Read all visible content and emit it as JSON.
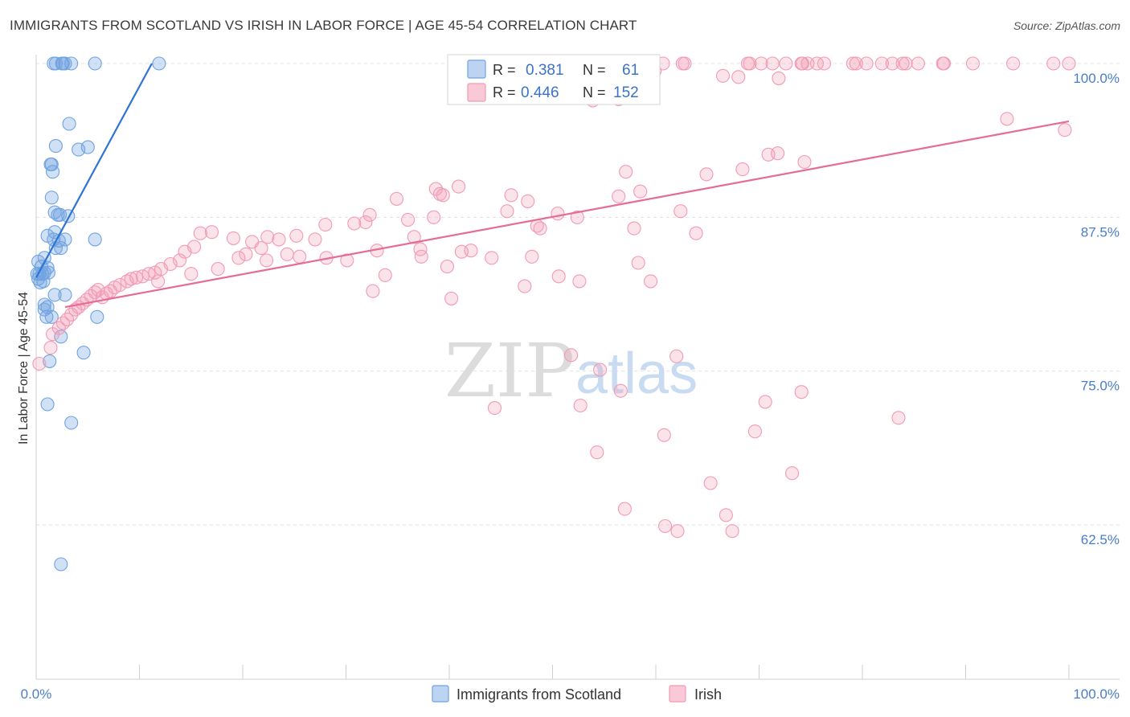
{
  "title": "IMMIGRANTS FROM SCOTLAND VS IRISH IN LABOR FORCE | AGE 45-54 CORRELATION CHART",
  "source": "Source: ZipAtlas.com",
  "watermark": {
    "zip": "ZIP",
    "atlas": "atlas"
  },
  "colors": {
    "blue": "#6fa3e0",
    "blue_line": "#2f74d4",
    "pink": "#f29ab5",
    "pink_line": "#e56c96"
  },
  "legend": {
    "r_label": "R =",
    "n_label": "N =",
    "rows": [
      {
        "r": "0.381",
        "n": "61"
      },
      {
        "r": "0.446",
        "n": "152"
      }
    ]
  },
  "chart_data": {
    "type": "scatter",
    "title": "IMMIGRANTS FROM SCOTLAND VS IRISH IN LABOR FORCE | AGE 45-54 CORRELATION CHART",
    "xlabel": "",
    "ylabel": "In Labor Force | Age 45-54",
    "xlim": [
      0,
      100
    ],
    "ylim": [
      50,
      101
    ],
    "x_ticks": [
      "0.0%",
      "100.0%"
    ],
    "y_ticks": [
      {
        "value": 100,
        "label": "100.0%"
      },
      {
        "value": 87.5,
        "label": "87.5%"
      },
      {
        "value": 75,
        "label": "75.0%"
      },
      {
        "value": 62.5,
        "label": "62.5%"
      }
    ],
    "series": [
      {
        "name": "Immigrants from Scotland",
        "r": 0.381,
        "n": 61,
        "trend": [
          [
            0.0,
            82.6
          ],
          [
            11.2,
            100.0
          ]
        ],
        "points": [
          [
            1.7,
            100
          ],
          [
            1.9,
            100
          ],
          [
            2.5,
            100
          ],
          [
            2.6,
            100
          ],
          [
            2.8,
            100
          ],
          [
            3.4,
            100
          ],
          [
            5.7,
            100
          ],
          [
            11.9,
            100
          ],
          [
            3.2,
            95.1
          ],
          [
            1.9,
            93.3
          ],
          [
            4.1,
            93.0
          ],
          [
            5.0,
            93.2
          ],
          [
            1.4,
            91.8
          ],
          [
            1.5,
            91.8
          ],
          [
            1.6,
            91.2
          ],
          [
            1.5,
            89.1
          ],
          [
            1.8,
            87.9
          ],
          [
            2.3,
            87.7
          ],
          [
            3.1,
            87.6
          ],
          [
            2.1,
            87.7
          ],
          [
            1.1,
            86.0
          ],
          [
            1.8,
            86.3
          ],
          [
            1.7,
            85.7
          ],
          [
            2.2,
            85.6
          ],
          [
            2.8,
            85.7
          ],
          [
            5.7,
            85.7
          ],
          [
            1.9,
            85.0
          ],
          [
            2.4,
            85.0
          ],
          [
            0.8,
            84.2
          ],
          [
            0.2,
            83.9
          ],
          [
            0.5,
            83.5
          ],
          [
            1.1,
            83.4
          ],
          [
            0.1,
            82.9
          ],
          [
            0.3,
            82.9
          ],
          [
            0.6,
            82.9
          ],
          [
            0.8,
            83.0
          ],
          [
            1.2,
            83.0
          ],
          [
            0.2,
            82.5
          ],
          [
            0.4,
            82.2
          ],
          [
            0.7,
            82.3
          ],
          [
            1.8,
            81.2
          ],
          [
            2.8,
            81.2
          ],
          [
            0.8,
            80.4
          ],
          [
            1.1,
            80.2
          ],
          [
            0.8,
            80.0
          ],
          [
            1.0,
            79.4
          ],
          [
            1.5,
            79.4
          ],
          [
            5.9,
            79.4
          ],
          [
            2.4,
            77.8
          ],
          [
            4.6,
            76.5
          ],
          [
            1.3,
            75.8
          ],
          [
            1.1,
            72.3
          ],
          [
            3.4,
            70.8
          ],
          [
            2.4,
            59.3
          ]
        ]
      },
      {
        "name": "Irish",
        "r": 0.446,
        "n": 152,
        "trend": [
          [
            2.8,
            80.2
          ],
          [
            100.0,
            95.3
          ]
        ],
        "points": [
          [
            52.3,
            100
          ],
          [
            54.2,
            100
          ],
          [
            57.3,
            100
          ],
          [
            58.3,
            100
          ],
          [
            59.7,
            100
          ],
          [
            60.7,
            100
          ],
          [
            62.6,
            100
          ],
          [
            62.8,
            100
          ],
          [
            68.9,
            100
          ],
          [
            69.1,
            100
          ],
          [
            70.2,
            100
          ],
          [
            71.3,
            100
          ],
          [
            72.6,
            100
          ],
          [
            74.1,
            100
          ],
          [
            74.2,
            100
          ],
          [
            74.7,
            100
          ],
          [
            75.6,
            100
          ],
          [
            76.3,
            100
          ],
          [
            79.1,
            100
          ],
          [
            79.4,
            100
          ],
          [
            80.4,
            100
          ],
          [
            81.9,
            100
          ],
          [
            82.9,
            100
          ],
          [
            83.9,
            100
          ],
          [
            84.2,
            100
          ],
          [
            85.4,
            100
          ],
          [
            87.8,
            100
          ],
          [
            87.9,
            100
          ],
          [
            90.7,
            100
          ],
          [
            94.6,
            100
          ],
          [
            98.5,
            100
          ],
          [
            100.0,
            100
          ],
          [
            59.9,
            99.4
          ],
          [
            66.5,
            99.0
          ],
          [
            68.0,
            98.9
          ],
          [
            71.9,
            98.8
          ],
          [
            53.9,
            97.0
          ],
          [
            53.8,
            97.8
          ],
          [
            56.4,
            97.1
          ],
          [
            94.0,
            95.5
          ],
          [
            99.6,
            94.6
          ],
          [
            70.9,
            92.6
          ],
          [
            71.8,
            92.7
          ],
          [
            74.4,
            92.0
          ],
          [
            57.1,
            91.2
          ],
          [
            64.9,
            91.0
          ],
          [
            68.4,
            91.4
          ],
          [
            40.9,
            90.0
          ],
          [
            39.4,
            89.3
          ],
          [
            39.1,
            89.4
          ],
          [
            38.7,
            89.8
          ],
          [
            34.9,
            89.0
          ],
          [
            56.4,
            89.2
          ],
          [
            58.5,
            89.6
          ],
          [
            46.0,
            89.3
          ],
          [
            47.6,
            88.8
          ],
          [
            50.5,
            87.8
          ],
          [
            45.6,
            88.0
          ],
          [
            62.4,
            88.0
          ],
          [
            48.8,
            86.6
          ],
          [
            63.9,
            86.2
          ],
          [
            48.5,
            86.8
          ],
          [
            52.4,
            87.5
          ],
          [
            57.9,
            86.6
          ],
          [
            36.0,
            87.3
          ],
          [
            38.5,
            87.5
          ],
          [
            36.6,
            85.9
          ],
          [
            37.2,
            84.9
          ],
          [
            32.3,
            87.7
          ],
          [
            31.9,
            87.1
          ],
          [
            30.8,
            87.0
          ],
          [
            28.0,
            86.9
          ],
          [
            27.0,
            85.7
          ],
          [
            25.2,
            86.0
          ],
          [
            24.3,
            84.5
          ],
          [
            23.5,
            85.7
          ],
          [
            22.4,
            85.9
          ],
          [
            21.8,
            85.0
          ],
          [
            20.9,
            85.5
          ],
          [
            20.3,
            84.5
          ],
          [
            19.1,
            85.8
          ],
          [
            17.0,
            86.3
          ],
          [
            15.9,
            86.2
          ],
          [
            15.3,
            85.1
          ],
          [
            14.4,
            84.7
          ],
          [
            13.9,
            84.0
          ],
          [
            13.0,
            83.7
          ],
          [
            12.1,
            83.3
          ],
          [
            11.5,
            83.0
          ],
          [
            10.9,
            82.9
          ],
          [
            10.3,
            82.7
          ],
          [
            9.7,
            82.6
          ],
          [
            9.2,
            82.5
          ],
          [
            8.8,
            82.3
          ],
          [
            8.1,
            82.0
          ],
          [
            7.6,
            81.8
          ],
          [
            7.2,
            81.5
          ],
          [
            6.8,
            81.3
          ],
          [
            6.4,
            81.0
          ],
          [
            6.0,
            81.6
          ],
          [
            5.7,
            81.4
          ],
          [
            5.3,
            81.1
          ],
          [
            4.9,
            80.8
          ],
          [
            4.5,
            80.5
          ],
          [
            4.1,
            80.2
          ],
          [
            3.8,
            80.0
          ],
          [
            3.4,
            79.6
          ],
          [
            3.0,
            79.2
          ],
          [
            2.6,
            78.9
          ],
          [
            2.2,
            78.5
          ],
          [
            1.6,
            78.0
          ],
          [
            1.4,
            76.9
          ],
          [
            0.3,
            75.6
          ],
          [
            11.8,
            82.3
          ],
          [
            15.0,
            82.9
          ],
          [
            17.6,
            83.3
          ],
          [
            19.6,
            84.2
          ],
          [
            22.3,
            84.0
          ],
          [
            25.5,
            84.3
          ],
          [
            28.1,
            84.2
          ],
          [
            30.1,
            84.0
          ],
          [
            33.0,
            84.8
          ],
          [
            37.3,
            84.3
          ],
          [
            42.1,
            84.8
          ],
          [
            44.1,
            84.2
          ],
          [
            48.0,
            84.3
          ],
          [
            52.6,
            82.3
          ],
          [
            59.5,
            82.3
          ],
          [
            58.3,
            83.8
          ],
          [
            47.3,
            81.9
          ],
          [
            50.6,
            82.7
          ],
          [
            41.2,
            84.7
          ],
          [
            39.8,
            83.5
          ],
          [
            33.8,
            82.8
          ],
          [
            32.6,
            81.5
          ],
          [
            40.2,
            80.9
          ],
          [
            51.8,
            76.3
          ],
          [
            54.6,
            75.1
          ],
          [
            62.0,
            76.2
          ],
          [
            54.3,
            68.4
          ],
          [
            57.0,
            63.8
          ],
          [
            60.8,
            69.8
          ],
          [
            65.3,
            65.9
          ],
          [
            69.6,
            70.1
          ],
          [
            73.2,
            66.7
          ],
          [
            70.6,
            72.5
          ],
          [
            74.1,
            73.3
          ],
          [
            60.9,
            62.4
          ],
          [
            62.1,
            62.0
          ],
          [
            44.4,
            72.0
          ],
          [
            52.7,
            72.2
          ],
          [
            56.6,
            73.4
          ],
          [
            83.5,
            71.2
          ],
          [
            66.8,
            63.3
          ],
          [
            67.4,
            62.0
          ]
        ]
      }
    ]
  },
  "bottom_legend": [
    {
      "label": "Immigrants from Scotland"
    },
    {
      "label": "Irish"
    }
  ]
}
